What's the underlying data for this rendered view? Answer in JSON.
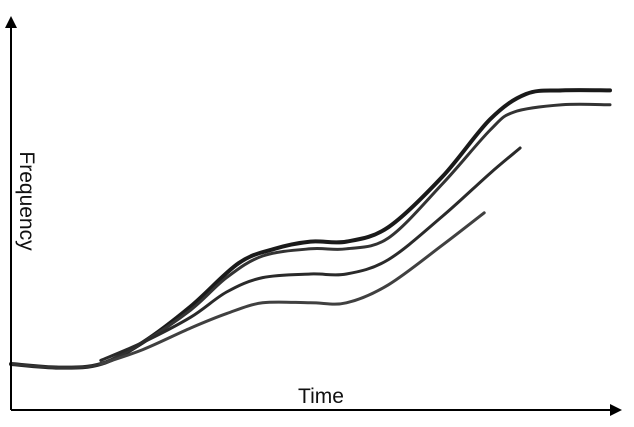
{
  "chart_data": {
    "type": "line",
    "title": "",
    "xlabel": "Time",
    "ylabel": "Frequency",
    "xlim": [
      0,
      100
    ],
    "ylim": [
      0,
      100
    ],
    "grid": false,
    "legend": "none",
    "tick_labels": false,
    "series": [
      {
        "color": "#1a1a1a",
        "points": [
          [
            0,
            10
          ],
          [
            8,
            9
          ],
          [
            15,
            10
          ],
          [
            22,
            16
          ],
          [
            30,
            26
          ],
          [
            38,
            38
          ],
          [
            44,
            42
          ],
          [
            50,
            44
          ],
          [
            56,
            44
          ],
          [
            63,
            48
          ],
          [
            72,
            62
          ],
          [
            80,
            78
          ],
          [
            86,
            85
          ],
          [
            92,
            86
          ],
          [
            100,
            86
          ]
        ]
      },
      {
        "color": "#333333",
        "points": [
          [
            0,
            10
          ],
          [
            8,
            9
          ],
          [
            15,
            10
          ],
          [
            22,
            16
          ],
          [
            30,
            25
          ],
          [
            36,
            34
          ],
          [
            42,
            40
          ],
          [
            50,
            42
          ],
          [
            56,
            42
          ],
          [
            63,
            45
          ],
          [
            72,
            60
          ],
          [
            80,
            75
          ],
          [
            84,
            80
          ],
          [
            92,
            82
          ],
          [
            100,
            82
          ]
        ]
      },
      {
        "color": "#2a2a2a",
        "points": [
          [
            15,
            11
          ],
          [
            22,
            16
          ],
          [
            30,
            23
          ],
          [
            36,
            30
          ],
          [
            42,
            34
          ],
          [
            50,
            35
          ],
          [
            56,
            35
          ],
          [
            63,
            39
          ],
          [
            72,
            51
          ],
          [
            80,
            63
          ],
          [
            85,
            70
          ]
        ]
      },
      {
        "color": "#404040",
        "points": [
          [
            15,
            10
          ],
          [
            22,
            14
          ],
          [
            30,
            20
          ],
          [
            36,
            24
          ],
          [
            42,
            27
          ],
          [
            50,
            27
          ],
          [
            56,
            27
          ],
          [
            63,
            32
          ],
          [
            72,
            43
          ],
          [
            79,
            52
          ]
        ]
      }
    ]
  }
}
